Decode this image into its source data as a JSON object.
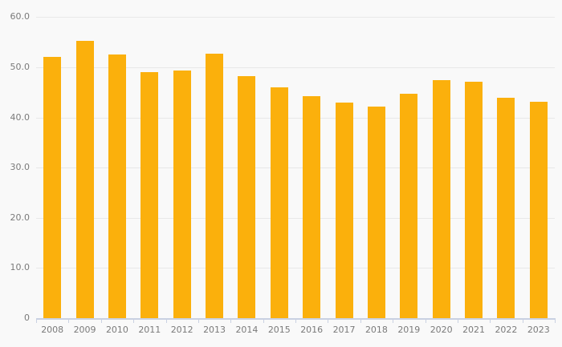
{
  "chart_data": {
    "type": "bar",
    "title": "",
    "xlabel": "",
    "ylabel": "",
    "categories": [
      "2008",
      "2009",
      "2010",
      "2011",
      "2012",
      "2013",
      "2014",
      "2015",
      "2016",
      "2017",
      "2018",
      "2019",
      "2020",
      "2021",
      "2022",
      "2023"
    ],
    "values": [
      52.1,
      55.2,
      52.5,
      49.0,
      49.3,
      52.7,
      48.2,
      46.0,
      44.3,
      42.9,
      42.1,
      44.8,
      47.4,
      47.1,
      44.0,
      43.1
    ],
    "ylim": [
      0,
      60
    ],
    "yticks": [
      {
        "value": 60,
        "label": "60.0"
      },
      {
        "value": 50,
        "label": "50.0"
      },
      {
        "value": 40,
        "label": "40.0"
      },
      {
        "value": 30,
        "label": "30.0"
      },
      {
        "value": 20,
        "label": "20.0"
      },
      {
        "value": 10,
        "label": "10.0"
      },
      {
        "value": 0,
        "label": "0"
      }
    ],
    "grid": true,
    "legend": "none"
  },
  "colors": {
    "background": "#F9F9F9",
    "bar": "#FBB00C",
    "gridline": "#E8E8E8",
    "axis_line": "#C9D1E2",
    "tick": "#C9D1E2",
    "label_text": "#7A7A7A"
  }
}
